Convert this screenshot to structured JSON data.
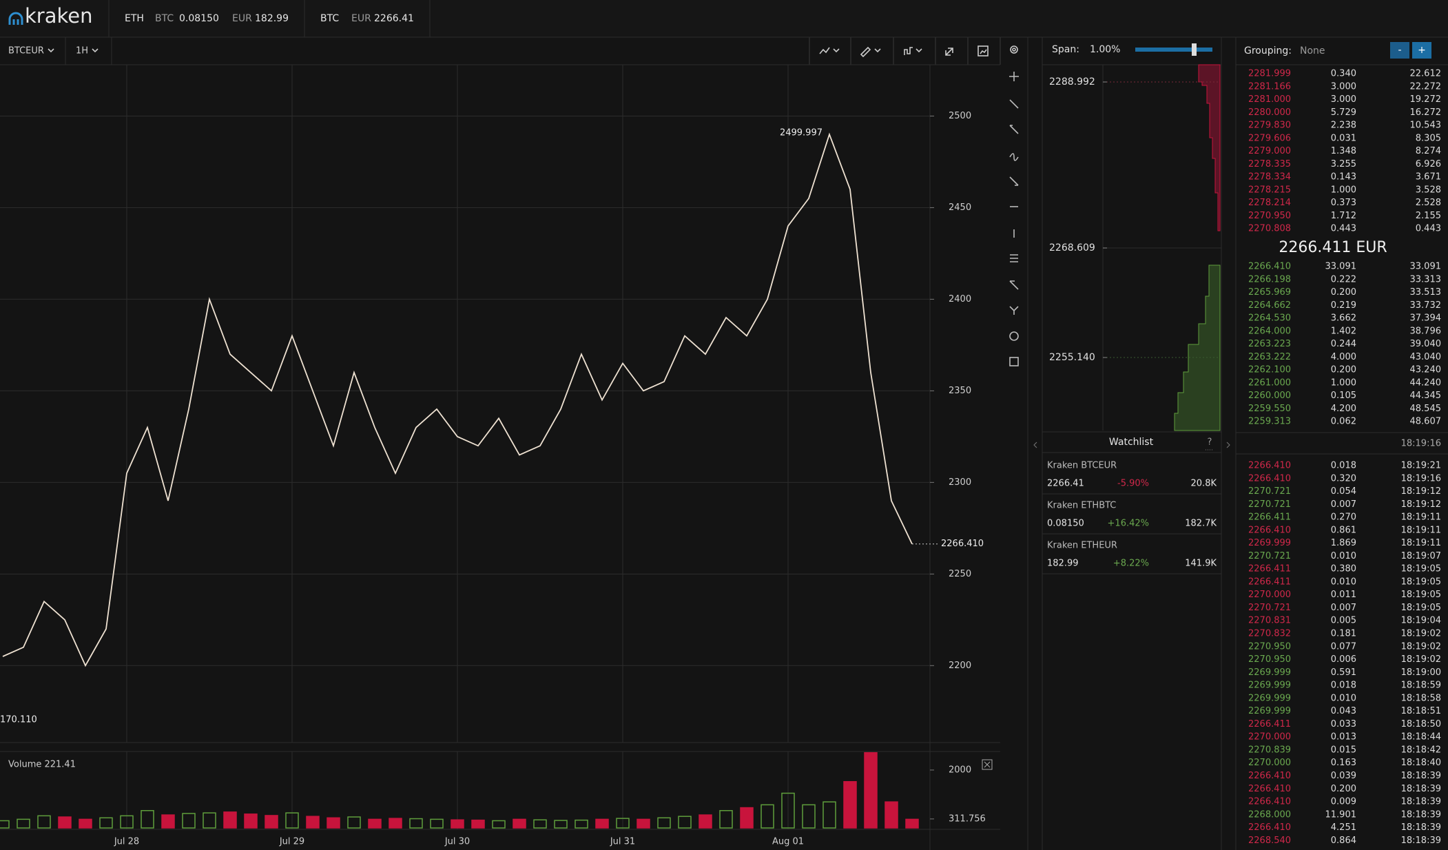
{
  "header": {
    "logo": "kraken",
    "tickers": [
      {
        "base": "ETH",
        "quotes": [
          {
            "currency": "BTC",
            "price": "0.08150"
          },
          {
            "currency": "EUR",
            "price": "182.99"
          }
        ]
      },
      {
        "base": "BTC",
        "quotes": [
          {
            "currency": "EUR",
            "price": "2266.41"
          }
        ]
      }
    ]
  },
  "toolbar": {
    "pair": "BTCEUR",
    "interval": "1H"
  },
  "chart_data": [
    {
      "type": "line",
      "color": "#efe2d2",
      "values": [
        2205,
        2210,
        2235,
        2225,
        2200,
        2220,
        2305,
        2330,
        2290,
        2340,
        2400,
        2370,
        2360,
        2350,
        2380,
        2350,
        2320,
        2360,
        2330,
        2305,
        2330,
        2340,
        2325,
        2320,
        2335,
        2315,
        2320,
        2340,
        2370,
        2345,
        2365,
        2350,
        2355,
        2380,
        2370,
        2390,
        2380,
        2400,
        2440,
        2455,
        2490,
        2460,
        2360,
        2290,
        2266.41
      ],
      "ylim": [
        2158,
        2528
      ],
      "yticks": [
        2200,
        2250,
        2300,
        2350,
        2400,
        2450,
        2500
      ],
      "grid": true,
      "annotations": [
        "2499.997",
        "170.110"
      ],
      "last_price_label": "2266.410"
    },
    {
      "type": "bar",
      "title": "Volume 221.41",
      "categories": [
        null,
        null,
        null,
        null,
        null,
        null,
        "Jul 28",
        null,
        null,
        null,
        null,
        null,
        null,
        null,
        "Jul 29",
        null,
        null,
        null,
        null,
        null,
        null,
        null,
        "Jul 30",
        null,
        null,
        null,
        null,
        null,
        null,
        null,
        "Jul 31",
        null,
        null,
        null,
        null,
        null,
        null,
        null,
        "Aug 01",
        null,
        null,
        null,
        null,
        null,
        null
      ],
      "values": [
        250,
        300,
        420,
        380,
        300,
        350,
        420,
        600,
        450,
        500,
        520,
        550,
        480,
        430,
        520,
        400,
        350,
        380,
        300,
        330,
        320,
        300,
        280,
        270,
        250,
        300,
        280,
        260,
        270,
        300,
        330,
        300,
        350,
        400,
        450,
        600,
        700,
        800,
        1200,
        800,
        900,
        1600,
        2600,
        900,
        300
      ],
      "up_color": "#5f9e3c",
      "down_color": "#c8143c",
      "ylim": [
        0,
        2640
      ],
      "yticks": [
        2000,
        311.756
      ],
      "grid": true
    }
  ],
  "depth": {
    "span_label": "Span:",
    "span": "1.00%",
    "ticks": [
      "2288.992",
      "2268.609",
      "2255.140"
    ]
  },
  "watchlist": {
    "title": "Watchlist",
    "help": "?",
    "rows": [
      {
        "name": "Kraken BTCEUR",
        "price": "2266.41",
        "change": "-5.90%",
        "volume": "20.8K"
      },
      {
        "name": "Kraken ETHBTC",
        "price": "0.08150",
        "change": "+16.42%",
        "volume": "182.7K"
      },
      {
        "name": "Kraken ETHEUR",
        "price": "182.99",
        "change": "+8.22%",
        "volume": "141.9K"
      }
    ]
  },
  "order_book": {
    "grouping_label": "Grouping:",
    "grouping": "None",
    "buttons": [
      "-",
      "+"
    ],
    "asks": [
      [
        "2281.999",
        "0.340",
        "22.612"
      ],
      [
        "2281.166",
        "3.000",
        "22.272"
      ],
      [
        "2281.000",
        "3.000",
        "19.272"
      ],
      [
        "2280.000",
        "5.729",
        "16.272"
      ],
      [
        "2279.830",
        "2.238",
        "10.543"
      ],
      [
        "2279.606",
        "0.031",
        "8.305"
      ],
      [
        "2279.000",
        "1.348",
        "8.274"
      ],
      [
        "2278.335",
        "3.255",
        "6.926"
      ],
      [
        "2278.334",
        "0.143",
        "3.671"
      ],
      [
        "2278.215",
        "1.000",
        "3.528"
      ],
      [
        "2278.214",
        "0.373",
        "2.528"
      ],
      [
        "2270.950",
        "1.712",
        "2.155"
      ],
      [
        "2270.808",
        "0.443",
        "0.443"
      ]
    ],
    "mid": "2266.411 EUR",
    "bids": [
      [
        "2266.410",
        "33.091",
        "33.091"
      ],
      [
        "2266.198",
        "0.222",
        "33.313"
      ],
      [
        "2265.969",
        "0.200",
        "33.513"
      ],
      [
        "2264.662",
        "0.219",
        "33.732"
      ],
      [
        "2264.530",
        "3.662",
        "37.394"
      ],
      [
        "2264.000",
        "1.402",
        "38.796"
      ],
      [
        "2263.223",
        "0.244",
        "39.040"
      ],
      [
        "2263.222",
        "4.000",
        "43.040"
      ],
      [
        "2262.100",
        "0.200",
        "43.240"
      ],
      [
        "2261.000",
        "1.000",
        "44.240"
      ],
      [
        "2260.000",
        "0.105",
        "44.345"
      ],
      [
        "2259.550",
        "4.200",
        "48.545"
      ],
      [
        "2259.313",
        "0.062",
        "48.607"
      ]
    ]
  },
  "trades": {
    "time": "18:19:16",
    "rows": [
      {
        "price": "2266.410",
        "amount": "0.018",
        "time": "18:19:21",
        "color": "#d0284a"
      },
      {
        "price": "2266.410",
        "amount": "0.320",
        "time": "18:19:16",
        "color": "#d0284a"
      },
      {
        "price": "2270.721",
        "amount": "0.054",
        "time": "18:19:12",
        "color": "#6aa84f"
      },
      {
        "price": "2270.721",
        "amount": "0.007",
        "time": "18:19:12",
        "color": "#6aa84f"
      },
      {
        "price": "2266.411",
        "amount": "0.270",
        "time": "18:19:11",
        "color": "#6aa84f"
      },
      {
        "price": "2266.410",
        "amount": "0.861",
        "time": "18:19:11",
        "color": "#d0284a"
      },
      {
        "price": "2269.999",
        "amount": "1.869",
        "time": "18:19:11",
        "color": "#d0284a"
      },
      {
        "price": "2270.721",
        "amount": "0.010",
        "time": "18:19:07",
        "color": "#6aa84f"
      },
      {
        "price": "2266.411",
        "amount": "0.380",
        "time": "18:19:05",
        "color": "#d0284a"
      },
      {
        "price": "2266.411",
        "amount": "0.010",
        "time": "18:19:05",
        "color": "#d0284a"
      },
      {
        "price": "2270.000",
        "amount": "0.011",
        "time": "18:19:05",
        "color": "#d0284a"
      },
      {
        "price": "2270.721",
        "amount": "0.007",
        "time": "18:19:05",
        "color": "#d0284a"
      },
      {
        "price": "2270.831",
        "amount": "0.005",
        "time": "18:19:04",
        "color": "#d0284a"
      },
      {
        "price": "2270.832",
        "amount": "0.181",
        "time": "18:19:02",
        "color": "#d0284a"
      },
      {
        "price": "2270.950",
        "amount": "0.077",
        "time": "18:19:02",
        "color": "#6aa84f"
      },
      {
        "price": "2270.950",
        "amount": "0.006",
        "time": "18:19:02",
        "color": "#6aa84f"
      },
      {
        "price": "2269.999",
        "amount": "0.591",
        "time": "18:19:00",
        "color": "#6aa84f"
      },
      {
        "price": "2269.999",
        "amount": "0.018",
        "time": "18:18:59",
        "color": "#6aa84f"
      },
      {
        "price": "2269.999",
        "amount": "0.010",
        "time": "18:18:58",
        "color": "#6aa84f"
      },
      {
        "price": "2269.999",
        "amount": "0.043",
        "time": "18:18:51",
        "color": "#6aa84f"
      },
      {
        "price": "2266.411",
        "amount": "0.033",
        "time": "18:18:50",
        "color": "#d0284a"
      },
      {
        "price": "2270.000",
        "amount": "0.013",
        "time": "18:18:44",
        "color": "#d0284a"
      },
      {
        "price": "2270.839",
        "amount": "0.015",
        "time": "18:18:42",
        "color": "#6aa84f"
      },
      {
        "price": "2270.000",
        "amount": "0.163",
        "time": "18:18:40",
        "color": "#6aa84f"
      },
      {
        "price": "2266.410",
        "amount": "0.039",
        "time": "18:18:39",
        "color": "#d0284a"
      },
      {
        "price": "2266.410",
        "amount": "0.200",
        "time": "18:18:39",
        "color": "#d0284a"
      },
      {
        "price": "2266.410",
        "amount": "0.009",
        "time": "18:18:39",
        "color": "#d0284a"
      },
      {
        "price": "2268.000",
        "amount": "11.901",
        "time": "18:18:39",
        "color": "#6aa84f"
      },
      {
        "price": "2266.410",
        "amount": "4.251",
        "time": "18:18:39",
        "color": "#d0284a"
      },
      {
        "price": "2268.540",
        "amount": "0.864",
        "time": "18:18:39",
        "color": "#d0284a"
      }
    ]
  }
}
